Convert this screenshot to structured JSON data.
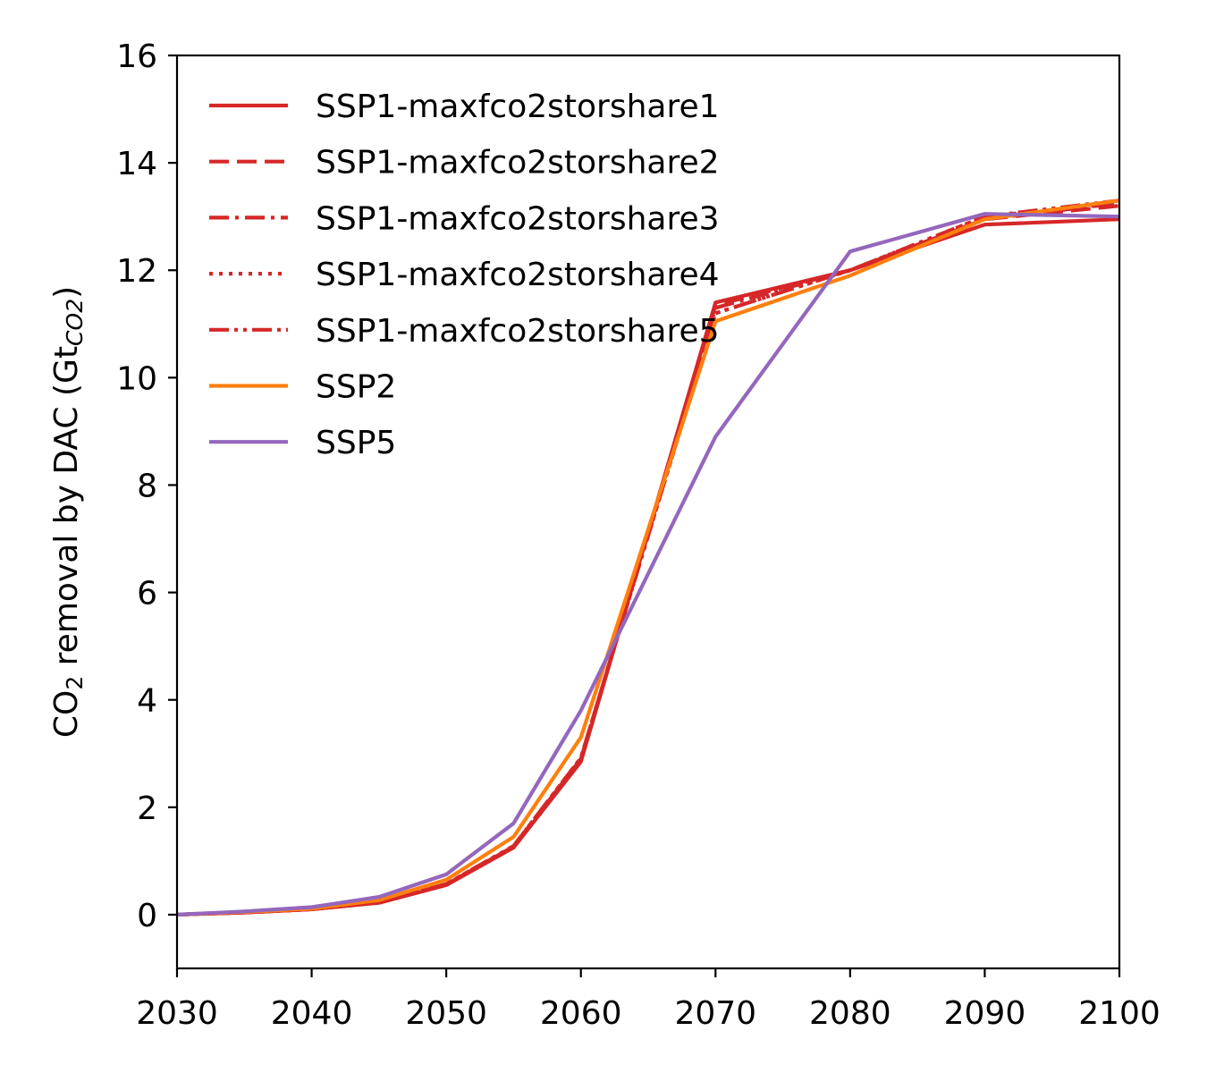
{
  "chart_data": {
    "type": "line",
    "title": "",
    "xlabel": "",
    "ylabel": {
      "prefix": "CO",
      "prefix_sub": "2",
      "middle": " removal by DAC (Gt",
      "unit_sub": "CO2",
      "suffix": ")"
    },
    "xlim": [
      2030,
      2100
    ],
    "ylim": [
      -1,
      16
    ],
    "xticks": [
      2030,
      2040,
      2050,
      2060,
      2070,
      2080,
      2090,
      2100
    ],
    "yticks": [
      0,
      2,
      4,
      6,
      8,
      10,
      12,
      14,
      16
    ],
    "grid": false,
    "legend_position": "upper-left",
    "x": [
      2030,
      2035,
      2040,
      2045,
      2050,
      2055,
      2060,
      2070,
      2080,
      2090,
      2100
    ],
    "series": [
      {
        "name": "SSP1-maxfco2storshare1",
        "color": "#d62728",
        "dash": "solid",
        "values": [
          0.0,
          0.04,
          0.1,
          0.22,
          0.55,
          1.25,
          2.85,
          11.4,
          12.0,
          12.85,
          12.95
        ]
      },
      {
        "name": "SSP1-maxfco2storshare2",
        "color": "#d62728",
        "dash": "dashed",
        "values": [
          0.0,
          0.04,
          0.1,
          0.23,
          0.56,
          1.27,
          2.9,
          11.35,
          12.0,
          12.95,
          13.2
        ]
      },
      {
        "name": "SSP1-maxfco2storshare3",
        "color": "#d62728",
        "dash": "dashdot",
        "values": [
          0.0,
          0.04,
          0.1,
          0.23,
          0.56,
          1.27,
          2.9,
          11.3,
          12.0,
          12.95,
          13.25
        ]
      },
      {
        "name": "SSP1-maxfco2storshare4",
        "color": "#d62728",
        "dash": "dotted",
        "values": [
          0.0,
          0.04,
          0.1,
          0.23,
          0.57,
          1.28,
          2.92,
          11.2,
          12.0,
          13.0,
          13.25
        ]
      },
      {
        "name": "SSP1-maxfco2storshare5",
        "color": "#d62728",
        "dash": "dashdotdot",
        "values": [
          0.0,
          0.04,
          0.1,
          0.23,
          0.57,
          1.28,
          2.92,
          11.2,
          12.0,
          13.0,
          13.3
        ]
      },
      {
        "name": "SSP2",
        "color": "#ff7f0e",
        "dash": "solid",
        "values": [
          0.0,
          0.05,
          0.11,
          0.27,
          0.65,
          1.45,
          3.3,
          11.05,
          11.9,
          12.95,
          13.3
        ]
      },
      {
        "name": "SSP5",
        "color": "#9467bd",
        "dash": "solid",
        "values": [
          0.0,
          0.06,
          0.14,
          0.33,
          0.75,
          1.7,
          3.8,
          8.9,
          12.35,
          13.05,
          13.0
        ]
      }
    ]
  }
}
